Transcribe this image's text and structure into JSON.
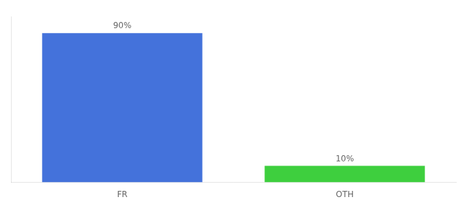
{
  "chart_data": {
    "type": "bar",
    "categories": [
      "FR",
      "OTH"
    ],
    "values": [
      90,
      10
    ],
    "value_labels": [
      "90%",
      "10%"
    ],
    "colors": [
      "#4472db",
      "#3ecf3e"
    ],
    "ylim": [
      0,
      100
    ],
    "grid": false,
    "data_labels": true,
    "tick_labels": "x"
  }
}
